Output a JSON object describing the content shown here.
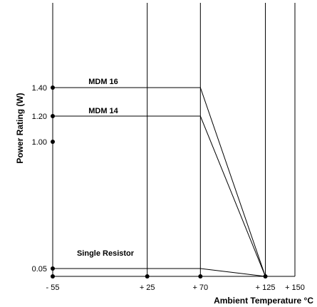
{
  "chart_data": {
    "type": "line",
    "xlabel": "Ambient Temperature °C",
    "ylabel": "Power Rating (W)",
    "x_tick_values": [
      -55,
      25,
      70,
      125,
      150
    ],
    "x_tick_labels": [
      "- 55",
      "+ 25",
      "+ 70",
      "+ 125",
      "+ 150"
    ],
    "y_tick_values": [
      0.05,
      1.0,
      1.2,
      1.4
    ],
    "y_tick_labels": [
      "0.05",
      "1.00",
      "1.20",
      "1.40"
    ],
    "grid": "vertical",
    "series": [
      {
        "name": "MDM 16",
        "x": [
          -55,
          70,
          125
        ],
        "y": [
          1.4,
          1.4,
          0
        ]
      },
      {
        "name": "MDM 14",
        "x": [
          -55,
          70,
          125
        ],
        "y": [
          1.2,
          1.2,
          0
        ]
      },
      {
        "name": "Single Resistor",
        "x": [
          -55,
          70,
          125
        ],
        "y": [
          0.05,
          0.05,
          0
        ]
      }
    ]
  }
}
